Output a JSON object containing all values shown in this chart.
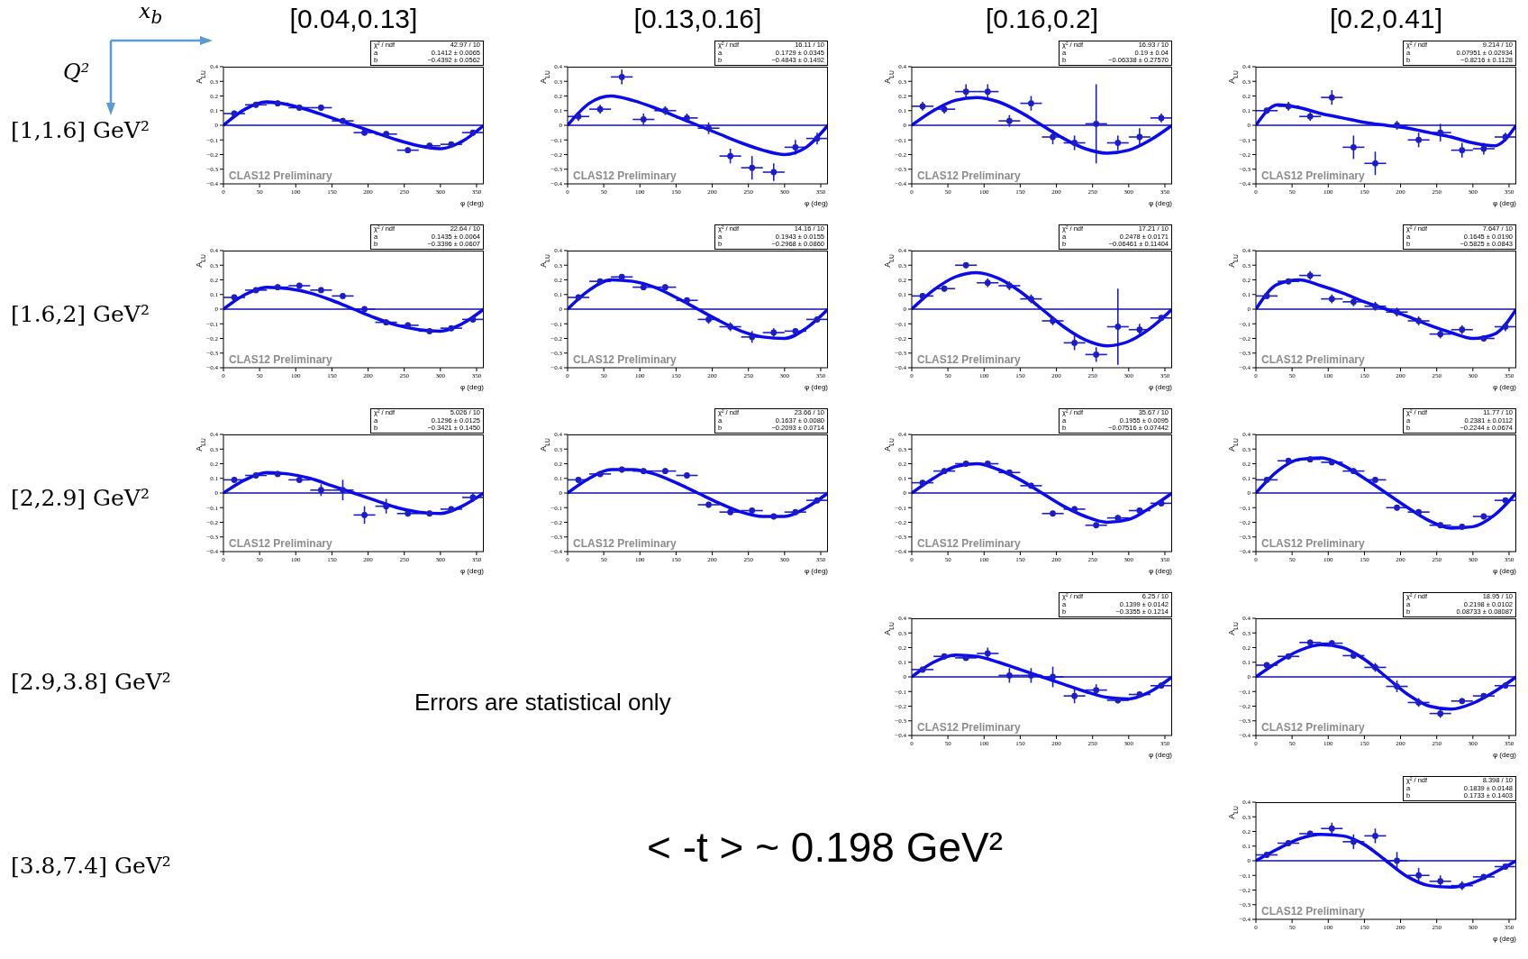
{
  "chart_data": [
    {
      "type": "scatter",
      "xlabel": "φ (deg)",
      "ylabel": "A$_{LU}$",
      "xlim": [
        0,
        360
      ],
      "xticks": [
        0,
        50,
        100,
        150,
        200,
        250,
        300,
        350
      ],
      "ylim": [
        -0.4,
        0.4
      ],
      "yticks": [
        -0.4,
        -0.3,
        -0.2,
        -0.1,
        0,
        0.1,
        0.2,
        0.3,
        0.4
      ],
      "x": [
        15,
        45,
        75,
        105,
        135,
        165,
        195,
        225,
        255,
        285,
        315,
        345
      ],
      "ref_lines": [
        {
          "axis": "y",
          "value": 0,
          "color": "#1010a8"
        }
      ],
      "annotations": [
        "χ² / ndf",
        "42.97 / 10",
        "a",
        "0.1412 ± 0.0065",
        "b",
        "−0.4392 ± 0.0562",
        "CLAS12 Preliminary"
      ],
      "series": [
        {
          "type": "scatter",
          "color": "#1c1cc8",
          "values": [
            0.08,
            0.14,
            0.15,
            0.12,
            0.12,
            0.03,
            -0.05,
            -0.06,
            -0.17,
            -0.14,
            -0.13,
            -0.05
          ],
          "errors": [
            0.02,
            0.02,
            0.02,
            0.02,
            0.02,
            0.02,
            0.02,
            0.02,
            0.02,
            0.02,
            0.02,
            0.02
          ],
          "xerrors": [
            15,
            15,
            15,
            15,
            15,
            15,
            15,
            15,
            15,
            15,
            15,
            15
          ]
        },
        {
          "type": "line",
          "color": "#0a0af0",
          "x": [
            0,
            30,
            60,
            90,
            120,
            150,
            180,
            210,
            240,
            270,
            300,
            330,
            360
          ],
          "values": [
            0,
            0.11,
            0.16,
            0.14,
            0.1,
            0.05,
            0,
            -0.05,
            -0.1,
            -0.14,
            -0.16,
            -0.11,
            0
          ]
        }
      ]
    },
    {
      "type": "scatter",
      "xlabel": "φ (deg)",
      "ylabel": "A$_{LU}$",
      "xlim": [
        0,
        360
      ],
      "xticks": [
        0,
        50,
        100,
        150,
        200,
        250,
        300,
        350
      ],
      "ylim": [
        -0.4,
        0.4
      ],
      "yticks": [
        -0.4,
        -0.3,
        -0.2,
        -0.1,
        0,
        0.1,
        0.2,
        0.3,
        0.4
      ],
      "x": [
        15,
        45,
        75,
        105,
        135,
        165,
        195,
        225,
        255,
        285,
        315,
        345
      ],
      "ref_lines": [
        {
          "axis": "y",
          "value": 0,
          "color": "#1010a8"
        }
      ],
      "annotations": [
        "χ² / ndf",
        "16.11 / 10",
        "a",
        "0.1729 ± 0.0345",
        "b",
        "−0.4843 ± 0.1492",
        "CLAS12 Preliminary"
      ],
      "series": [
        {
          "type": "scatter",
          "color": "#1c1cc8",
          "values": [
            0.06,
            0.11,
            0.33,
            0.04,
            0.1,
            0.05,
            -0.02,
            -0.21,
            -0.29,
            -0.32,
            -0.15,
            -0.09
          ],
          "errors": [
            0.03,
            0.03,
            0.05,
            0.04,
            0.03,
            0.03,
            0.04,
            0.05,
            0.08,
            0.06,
            0.05,
            0.04
          ],
          "xerrors": [
            15,
            15,
            15,
            15,
            15,
            15,
            15,
            15,
            15,
            15,
            15,
            15
          ]
        },
        {
          "type": "line",
          "color": "#0a0af0",
          "x": [
            0,
            30,
            60,
            90,
            120,
            150,
            180,
            210,
            240,
            270,
            300,
            330,
            360
          ],
          "values": [
            0,
            0.15,
            0.2,
            0.17,
            0.12,
            0.06,
            0,
            -0.06,
            -0.12,
            -0.17,
            -0.2,
            -0.15,
            0
          ]
        }
      ]
    },
    {
      "type": "scatter",
      "xlabel": "φ (deg)",
      "ylabel": "A$_{LU}$",
      "xlim": [
        0,
        360
      ],
      "xticks": [
        0,
        50,
        100,
        150,
        200,
        250,
        300,
        350
      ],
      "ylim": [
        -0.4,
        0.4
      ],
      "yticks": [
        -0.4,
        -0.3,
        -0.2,
        -0.1,
        0,
        0.1,
        0.2,
        0.3,
        0.4
      ],
      "x": [
        15,
        45,
        75,
        105,
        135,
        165,
        195,
        225,
        255,
        285,
        315,
        345
      ],
      "ref_lines": [
        {
          "axis": "y",
          "value": 0,
          "color": "#1010a8"
        }
      ],
      "annotations": [
        "χ² / ndf",
        "16.93 / 10",
        "a",
        "0.19 ± 0.04",
        "b",
        "−0.06338 ± 0.27570",
        "CLAS12 Preliminary"
      ],
      "series": [
        {
          "type": "scatter",
          "color": "#1c1cc8",
          "values": [
            0.13,
            0.11,
            0.23,
            0.23,
            0.03,
            0.15,
            -0.08,
            -0.12,
            0.01,
            -0.12,
            -0.08,
            0.05
          ],
          "errors": [
            0.03,
            0.03,
            0.05,
            0.05,
            0.04,
            0.05,
            0.05,
            0.05,
            0.27,
            0.05,
            0.06,
            0.03
          ],
          "xerrors": [
            15,
            15,
            15,
            15,
            15,
            15,
            15,
            15,
            15,
            15,
            15,
            15
          ]
        },
        {
          "type": "line",
          "color": "#0a0af0",
          "x": [
            0,
            30,
            60,
            90,
            120,
            150,
            180,
            210,
            240,
            270,
            300,
            330,
            360
          ],
          "values": [
            0,
            0.1,
            0.17,
            0.19,
            0.16,
            0.09,
            0,
            -0.09,
            -0.16,
            -0.19,
            -0.17,
            -0.1,
            0
          ]
        }
      ]
    },
    {
      "type": "scatter",
      "xlabel": "φ (deg)",
      "ylabel": "A$_{LU}$",
      "xlim": [
        0,
        360
      ],
      "xticks": [
        0,
        50,
        100,
        150,
        200,
        250,
        300,
        350
      ],
      "ylim": [
        -0.4,
        0.4
      ],
      "yticks": [
        -0.4,
        -0.3,
        -0.2,
        -0.1,
        0,
        0.1,
        0.2,
        0.3,
        0.4
      ],
      "x": [
        15,
        45,
        75,
        105,
        135,
        165,
        195,
        225,
        255,
        285,
        315,
        345
      ],
      "ref_lines": [
        {
          "axis": "y",
          "value": 0,
          "color": "#1010a8"
        }
      ],
      "annotations": [
        "χ² / ndf",
        "9.214 / 10",
        "a",
        "0.07951 ± 0.02934",
        "b",
        "−0.8216 ± 0.1128",
        "CLAS12 Preliminary"
      ],
      "series": [
        {
          "type": "scatter",
          "color": "#1c1cc8",
          "values": [
            0.1,
            0.13,
            0.06,
            0.19,
            -0.15,
            -0.26,
            0,
            -0.1,
            -0.05,
            -0.17,
            -0.16,
            -0.08
          ],
          "errors": [
            0.02,
            0.03,
            0.03,
            0.05,
            0.08,
            0.08,
            0.03,
            0.05,
            0.06,
            0.05,
            0.04,
            0.03
          ],
          "xerrors": [
            15,
            15,
            15,
            15,
            15,
            15,
            15,
            15,
            15,
            15,
            15,
            15
          ]
        },
        {
          "type": "line",
          "color": "#0a0af0",
          "x": [
            0,
            30,
            60,
            90,
            120,
            150,
            180,
            210,
            240,
            270,
            300,
            330,
            360
          ],
          "values": [
            0,
            0.14,
            0.12,
            0.08,
            0.05,
            0.02,
            0,
            -0.02,
            -0.05,
            -0.08,
            -0.12,
            -0.14,
            0
          ]
        }
      ]
    },
    {
      "type": "scatter",
      "xlabel": "φ (deg)",
      "ylabel": "A$_{LU}$",
      "xlim": [
        0,
        360
      ],
      "xticks": [
        0,
        50,
        100,
        150,
        200,
        250,
        300,
        350
      ],
      "ylim": [
        -0.4,
        0.4
      ],
      "yticks": [
        -0.4,
        -0.3,
        -0.2,
        -0.1,
        0,
        0.1,
        0.2,
        0.3,
        0.4
      ],
      "x": [
        15,
        45,
        75,
        105,
        135,
        165,
        195,
        225,
        255,
        285,
        315,
        345
      ],
      "ref_lines": [
        {
          "axis": "y",
          "value": 0,
          "color": "#1010a8"
        }
      ],
      "annotations": [
        "χ² / ndf",
        "22.64 / 10",
        "a",
        "0.1435 ± 0.0064",
        "b",
        "−0.3396 ± 0.0607",
        "CLAS12 Preliminary"
      ],
      "series": [
        {
          "type": "scatter",
          "color": "#1c1cc8",
          "values": [
            0.08,
            0.13,
            0.15,
            0.16,
            0.13,
            0.09,
            0,
            -0.09,
            -0.11,
            -0.15,
            -0.13,
            -0.07
          ],
          "errors": [
            0.02,
            0.02,
            0.02,
            0.02,
            0.02,
            0.02,
            0.02,
            0.02,
            0.02,
            0.02,
            0.02,
            0.02
          ],
          "xerrors": [
            15,
            15,
            15,
            15,
            15,
            15,
            15,
            15,
            15,
            15,
            15,
            15
          ]
        },
        {
          "type": "line",
          "color": "#0a0af0",
          "x": [
            0,
            30,
            60,
            90,
            120,
            150,
            180,
            210,
            240,
            270,
            300,
            330,
            360
          ],
          "values": [
            0,
            0.1,
            0.15,
            0.14,
            0.11,
            0.06,
            0,
            -0.06,
            -0.11,
            -0.14,
            -0.15,
            -0.1,
            0
          ]
        }
      ]
    },
    {
      "type": "scatter",
      "xlabel": "φ (deg)",
      "ylabel": "A$_{LU}$",
      "xlim": [
        0,
        360
      ],
      "xticks": [
        0,
        50,
        100,
        150,
        200,
        250,
        300,
        350
      ],
      "ylim": [
        -0.4,
        0.4
      ],
      "yticks": [
        -0.4,
        -0.3,
        -0.2,
        -0.1,
        0,
        0.1,
        0.2,
        0.3,
        0.4
      ],
      "x": [
        15,
        45,
        75,
        105,
        135,
        165,
        195,
        225,
        255,
        285,
        315,
        345
      ],
      "ref_lines": [
        {
          "axis": "y",
          "value": 0,
          "color": "#1010a8"
        }
      ],
      "annotations": [
        "χ² / ndf",
        "14.16 / 10",
        "a",
        "0.1943 ± 0.0155",
        "b",
        "−0.2968 ± 0.0860",
        "CLAS12 Preliminary"
      ],
      "series": [
        {
          "type": "scatter",
          "color": "#1c1cc8",
          "values": [
            0.08,
            0.19,
            0.22,
            0.15,
            0.15,
            0.06,
            -0.07,
            -0.12,
            -0.19,
            -0.16,
            -0.15,
            -0.07
          ],
          "errors": [
            0.02,
            0.02,
            0.02,
            0.02,
            0.02,
            0.02,
            0.03,
            0.03,
            0.04,
            0.03,
            0.02,
            0.02
          ],
          "xerrors": [
            15,
            15,
            15,
            15,
            15,
            15,
            15,
            15,
            15,
            15,
            15,
            15
          ]
        },
        {
          "type": "line",
          "color": "#0a0af0",
          "x": [
            0,
            30,
            60,
            90,
            120,
            150,
            180,
            210,
            240,
            270,
            300,
            330,
            360
          ],
          "values": [
            0,
            0.13,
            0.2,
            0.19,
            0.15,
            0.08,
            0,
            -0.08,
            -0.15,
            -0.19,
            -0.2,
            -0.13,
            0
          ]
        }
      ]
    },
    {
      "type": "scatter",
      "xlabel": "φ (deg)",
      "ylabel": "A$_{LU}$",
      "xlim": [
        0,
        360
      ],
      "xticks": [
        0,
        50,
        100,
        150,
        200,
        250,
        300,
        350
      ],
      "ylim": [
        -0.4,
        0.4
      ],
      "yticks": [
        -0.4,
        -0.3,
        -0.2,
        -0.1,
        0,
        0.1,
        0.2,
        0.3,
        0.4
      ],
      "x": [
        15,
        45,
        75,
        105,
        135,
        165,
        195,
        225,
        255,
        285,
        315,
        345
      ],
      "ref_lines": [
        {
          "axis": "y",
          "value": 0,
          "color": "#1010a8"
        }
      ],
      "annotations": [
        "χ² / ndf",
        "17.21 / 10",
        "a",
        "0.2478 ± 0.0171",
        "b",
        "−0.06461 ± 0.11404",
        "CLAS12 Preliminary"
      ],
      "series": [
        {
          "type": "scatter",
          "color": "#1c1cc8",
          "values": [
            0.09,
            0.14,
            0.3,
            0.18,
            0.16,
            0.07,
            -0.08,
            -0.23,
            -0.31,
            -0.12,
            -0.14,
            -0.06
          ],
          "errors": [
            0.02,
            0.02,
            0.02,
            0.03,
            0.03,
            0.03,
            0.03,
            0.05,
            0.05,
            0.26,
            0.04,
            0.02
          ],
          "xerrors": [
            15,
            15,
            15,
            15,
            15,
            15,
            15,
            15,
            15,
            15,
            15,
            15
          ]
        },
        {
          "type": "line",
          "color": "#0a0af0",
          "x": [
            0,
            30,
            60,
            90,
            120,
            150,
            180,
            210,
            240,
            270,
            300,
            330,
            360
          ],
          "values": [
            0,
            0.13,
            0.22,
            0.25,
            0.21,
            0.12,
            0,
            -0.12,
            -0.21,
            -0.25,
            -0.22,
            -0.13,
            0
          ]
        }
      ]
    },
    {
      "type": "scatter",
      "xlabel": "φ (deg)",
      "ylabel": "A$_{LU}$",
      "xlim": [
        0,
        360
      ],
      "xticks": [
        0,
        50,
        100,
        150,
        200,
        250,
        300,
        350
      ],
      "ylim": [
        -0.4,
        0.4
      ],
      "yticks": [
        -0.4,
        -0.3,
        -0.2,
        -0.1,
        0,
        0.1,
        0.2,
        0.3,
        0.4
      ],
      "x": [
        15,
        45,
        75,
        105,
        135,
        165,
        195,
        225,
        255,
        285,
        315,
        345
      ],
      "ref_lines": [
        {
          "axis": "y",
          "value": 0,
          "color": "#1010a8"
        }
      ],
      "annotations": [
        "χ² / ndf",
        "7.647 / 10",
        "a",
        "0.1645 ± 0.0190",
        "b",
        "−0.5825 ± 0.0843",
        "CLAS12 Preliminary"
      ],
      "series": [
        {
          "type": "scatter",
          "color": "#1c1cc8",
          "values": [
            0.09,
            0.19,
            0.23,
            0.07,
            0.05,
            0.02,
            -0.02,
            -0.08,
            -0.17,
            -0.14,
            -0.2,
            -0.12
          ],
          "errors": [
            0.02,
            0.02,
            0.03,
            0.03,
            0.03,
            0.03,
            0.03,
            0.03,
            0.03,
            0.03,
            0.02,
            0.03
          ],
          "xerrors": [
            15,
            15,
            15,
            15,
            15,
            15,
            15,
            15,
            15,
            15,
            15,
            15
          ]
        },
        {
          "type": "line",
          "color": "#0a0af0",
          "x": [
            0,
            30,
            60,
            90,
            120,
            150,
            180,
            210,
            240,
            270,
            300,
            330,
            360
          ],
          "values": [
            0,
            0.17,
            0.2,
            0.16,
            0.11,
            0.05,
            0,
            -0.05,
            -0.11,
            -0.16,
            -0.2,
            -0.17,
            0
          ]
        }
      ]
    },
    {
      "type": "scatter",
      "xlabel": "φ (deg)",
      "ylabel": "A$_{LU}$",
      "xlim": [
        0,
        360
      ],
      "xticks": [
        0,
        50,
        100,
        150,
        200,
        250,
        300,
        350
      ],
      "ylim": [
        -0.4,
        0.4
      ],
      "yticks": [
        -0.4,
        -0.3,
        -0.2,
        -0.1,
        0,
        0.1,
        0.2,
        0.3,
        0.4
      ],
      "x": [
        15,
        45,
        75,
        105,
        135,
        165,
        195,
        225,
        255,
        285,
        315,
        345
      ],
      "ref_lines": [
        {
          "axis": "y",
          "value": 0,
          "color": "#1010a8"
        }
      ],
      "annotations": [
        "χ² / ndf",
        "5.026 / 10",
        "a",
        "0.1296 ± 0.0125",
        "b",
        "−0.3421 ± 0.1450",
        "CLAS12 Preliminary"
      ],
      "series": [
        {
          "type": "scatter",
          "color": "#1c1cc8",
          "values": [
            0.09,
            0.12,
            0.13,
            0.09,
            0.02,
            0.02,
            -0.15,
            -0.09,
            -0.14,
            -0.14,
            -0.11,
            -0.03
          ],
          "errors": [
            0.02,
            0.02,
            0.02,
            0.02,
            0.04,
            0.07,
            0.06,
            0.05,
            0.02,
            0.02,
            0.02,
            0.03
          ],
          "xerrors": [
            15,
            15,
            15,
            15,
            15,
            15,
            15,
            15,
            15,
            15,
            15,
            15
          ]
        },
        {
          "type": "line",
          "color": "#0a0af0",
          "x": [
            0,
            30,
            60,
            90,
            120,
            150,
            180,
            210,
            240,
            270,
            300,
            330,
            360
          ],
          "values": [
            0,
            0.09,
            0.14,
            0.13,
            0.1,
            0.05,
            0,
            -0.05,
            -0.1,
            -0.13,
            -0.14,
            -0.09,
            0
          ]
        }
      ]
    },
    {
      "type": "scatter",
      "xlabel": "φ (deg)",
      "ylabel": "A$_{LU}$",
      "xlim": [
        0,
        360
      ],
      "xticks": [
        0,
        50,
        100,
        150,
        200,
        250,
        300,
        350
      ],
      "ylim": [
        -0.4,
        0.4
      ],
      "yticks": [
        -0.4,
        -0.3,
        -0.2,
        -0.1,
        0,
        0.1,
        0.2,
        0.3,
        0.4
      ],
      "x": [
        15,
        45,
        75,
        105,
        135,
        165,
        195,
        225,
        255,
        285,
        315,
        345
      ],
      "ref_lines": [
        {
          "axis": "y",
          "value": 0,
          "color": "#1010a8"
        }
      ],
      "annotations": [
        "χ² / ndf",
        "23.66 / 10",
        "a",
        "0.1637 ± 0.0080",
        "b",
        "−0.2093 ± 0.0714",
        "CLAS12 Preliminary"
      ],
      "series": [
        {
          "type": "scatter",
          "color": "#1c1cc8",
          "values": [
            0.09,
            0.13,
            0.16,
            0.15,
            0.15,
            0.12,
            -0.08,
            -0.13,
            -0.12,
            -0.16,
            -0.13,
            -0.05
          ],
          "errors": [
            0.02,
            0.02,
            0.02,
            0.02,
            0.02,
            0.02,
            0.02,
            0.02,
            0.02,
            0.02,
            0.02,
            0.02
          ],
          "xerrors": [
            15,
            15,
            15,
            15,
            15,
            15,
            15,
            15,
            15,
            15,
            15,
            15
          ]
        },
        {
          "type": "line",
          "color": "#0a0af0",
          "x": [
            0,
            30,
            60,
            90,
            120,
            150,
            180,
            210,
            240,
            270,
            300,
            330,
            360
          ],
          "values": [
            0,
            0.1,
            0.16,
            0.16,
            0.13,
            0.07,
            0,
            -0.07,
            -0.13,
            -0.16,
            -0.16,
            -0.1,
            0
          ]
        }
      ]
    },
    {
      "type": "scatter",
      "xlabel": "φ (deg)",
      "ylabel": "A$_{LU}$",
      "xlim": [
        0,
        360
      ],
      "xticks": [
        0,
        50,
        100,
        150,
        200,
        250,
        300,
        350
      ],
      "ylim": [
        -0.4,
        0.4
      ],
      "yticks": [
        -0.4,
        -0.3,
        -0.2,
        -0.1,
        0,
        0.1,
        0.2,
        0.3,
        0.4
      ],
      "x": [
        15,
        45,
        75,
        105,
        135,
        165,
        195,
        225,
        255,
        285,
        315,
        345
      ],
      "ref_lines": [
        {
          "axis": "y",
          "value": 0,
          "color": "#1010a8"
        }
      ],
      "annotations": [
        "χ² / ndf",
        "35.67 / 10",
        "a",
        "0.1955 ± 0.0095",
        "b",
        "−0.07516 ± 0.07442",
        "CLAS12 Preliminary"
      ],
      "series": [
        {
          "type": "scatter",
          "color": "#1c1cc8",
          "values": [
            0.07,
            0.15,
            0.2,
            0.2,
            0.14,
            0.05,
            -0.14,
            -0.11,
            -0.22,
            -0.17,
            -0.12,
            -0.07
          ],
          "errors": [
            0.02,
            0.02,
            0.02,
            0.02,
            0.02,
            0.02,
            0.02,
            0.02,
            0.02,
            0.02,
            0.02,
            0.02
          ],
          "xerrors": [
            15,
            15,
            15,
            15,
            15,
            15,
            15,
            15,
            15,
            15,
            15,
            15
          ]
        },
        {
          "type": "line",
          "color": "#0a0af0",
          "x": [
            0,
            30,
            60,
            90,
            120,
            150,
            180,
            210,
            240,
            270,
            300,
            330,
            360
          ],
          "values": [
            0,
            0.1,
            0.18,
            0.2,
            0.16,
            0.09,
            0,
            -0.09,
            -0.16,
            -0.2,
            -0.18,
            -0.1,
            0
          ]
        }
      ]
    },
    {
      "type": "scatter",
      "xlabel": "φ (deg)",
      "ylabel": "A$_{LU}$",
      "xlim": [
        0,
        360
      ],
      "xticks": [
        0,
        50,
        100,
        150,
        200,
        250,
        300,
        350
      ],
      "ylim": [
        -0.4,
        0.4
      ],
      "yticks": [
        -0.4,
        -0.3,
        -0.2,
        -0.1,
        0,
        0.1,
        0.2,
        0.3,
        0.4
      ],
      "x": [
        15,
        45,
        75,
        105,
        135,
        165,
        195,
        225,
        255,
        285,
        315,
        345
      ],
      "ref_lines": [
        {
          "axis": "y",
          "value": 0,
          "color": "#1010a8"
        }
      ],
      "annotations": [
        "χ² / ndf",
        "11.77 / 10",
        "a",
        "0.2381 ± 0.0112",
        "b",
        "−0.2244 ± 0.0674",
        "CLAS12 Preliminary"
      ],
      "series": [
        {
          "type": "scatter",
          "color": "#1c1cc8",
          "values": [
            0.09,
            0.22,
            0.23,
            0.21,
            0.15,
            0.09,
            -0.1,
            -0.13,
            -0.22,
            -0.23,
            -0.16,
            -0.05
          ],
          "errors": [
            0.02,
            0.02,
            0.02,
            0.02,
            0.02,
            0.02,
            0.02,
            0.02,
            0.02,
            0.02,
            0.02,
            0.02
          ],
          "xerrors": [
            15,
            15,
            15,
            15,
            15,
            15,
            15,
            15,
            15,
            15,
            15,
            15
          ]
        },
        {
          "type": "line",
          "color": "#0a0af0",
          "x": [
            0,
            30,
            60,
            90,
            120,
            150,
            180,
            210,
            240,
            270,
            300,
            330,
            360
          ],
          "values": [
            0,
            0.15,
            0.23,
            0.24,
            0.19,
            0.1,
            0,
            -0.1,
            -0.19,
            -0.24,
            -0.23,
            -0.15,
            0
          ]
        }
      ]
    },
    {
      "type": "scatter",
      "xlabel": "φ (deg)",
      "ylabel": "A$_{LU}$",
      "xlim": [
        0,
        360
      ],
      "xticks": [
        0,
        50,
        100,
        150,
        200,
        250,
        300,
        350
      ],
      "ylim": [
        -0.4,
        0.4
      ],
      "yticks": [
        -0.4,
        -0.3,
        -0.2,
        -0.1,
        0,
        0.1,
        0.2,
        0.3,
        0.4
      ],
      "x": [
        15,
        45,
        75,
        105,
        135,
        165,
        195,
        225,
        255,
        285,
        315,
        345
      ],
      "ref_lines": [
        {
          "axis": "y",
          "value": 0,
          "color": "#1010a8"
        }
      ],
      "annotations": [
        "χ² / ndf",
        "6.25 / 10",
        "a",
        "0.1399 ± 0.0142",
        "b",
        "−0.3355 ± 0.1214",
        "CLAS12 Preliminary"
      ],
      "series": [
        {
          "type": "scatter",
          "color": "#1c1cc8",
          "values": [
            0.05,
            0.14,
            0.13,
            0.16,
            0.01,
            0.01,
            0,
            -0.13,
            -0.09,
            -0.16,
            -0.12,
            -0.06
          ],
          "errors": [
            0.02,
            0.02,
            0.02,
            0.04,
            0.05,
            0.05,
            0.07,
            0.05,
            0.04,
            0.02,
            0.02,
            0.02
          ],
          "xerrors": [
            15,
            15,
            15,
            15,
            15,
            15,
            15,
            15,
            15,
            15,
            15,
            15
          ]
        },
        {
          "type": "line",
          "color": "#0a0af0",
          "x": [
            0,
            30,
            60,
            90,
            120,
            150,
            180,
            210,
            240,
            270,
            300,
            330,
            360
          ],
          "values": [
            0,
            0.1,
            0.15,
            0.14,
            0.1,
            0.05,
            0,
            -0.05,
            -0.1,
            -0.14,
            -0.15,
            -0.1,
            0
          ]
        }
      ]
    },
    {
      "type": "scatter",
      "xlabel": "φ (deg)",
      "ylabel": "A$_{LU}$",
      "xlim": [
        0,
        360
      ],
      "xticks": [
        0,
        50,
        100,
        150,
        200,
        250,
        300,
        350
      ],
      "ylim": [
        -0.4,
        0.4
      ],
      "yticks": [
        -0.4,
        -0.3,
        -0.2,
        -0.1,
        0,
        0.1,
        0.2,
        0.3,
        0.4
      ],
      "x": [
        15,
        45,
        75,
        105,
        135,
        165,
        195,
        225,
        255,
        285,
        315,
        345
      ],
      "ref_lines": [
        {
          "axis": "y",
          "value": 0,
          "color": "#1010a8"
        }
      ],
      "annotations": [
        "χ² / ndf",
        "18.95 / 10",
        "a",
        "0.2198 ± 0.0102",
        "b",
        "0.08733 ± 0.08087",
        "CLAS12 Preliminary"
      ],
      "series": [
        {
          "type": "scatter",
          "color": "#1c1cc8",
          "values": [
            0.08,
            0.14,
            0.235,
            0.23,
            0.145,
            0.065,
            -0.065,
            -0.175,
            -0.25,
            -0.165,
            -0.13,
            -0.06
          ],
          "errors": [
            0.02,
            0.02,
            0.02,
            0.02,
            0.02,
            0.03,
            0.04,
            0.03,
            0.03,
            0.02,
            0.02,
            0.02
          ],
          "xerrors": [
            15,
            15,
            15,
            15,
            15,
            15,
            15,
            15,
            15,
            15,
            15,
            15
          ]
        },
        {
          "type": "line",
          "color": "#0a0af0",
          "x": [
            0,
            30,
            60,
            90,
            120,
            150,
            180,
            210,
            240,
            270,
            300,
            330,
            360
          ],
          "values": [
            0,
            0.1,
            0.18,
            0.22,
            0.2,
            0.12,
            0,
            -0.12,
            -0.2,
            -0.22,
            -0.18,
            -0.1,
            0
          ]
        }
      ]
    },
    {
      "type": "scatter",
      "xlabel": "φ (deg)",
      "ylabel": "A$_{LU}$",
      "xlim": [
        0,
        360
      ],
      "xticks": [
        0,
        50,
        100,
        150,
        200,
        250,
        300,
        350
      ],
      "ylim": [
        -0.4,
        0.4
      ],
      "yticks": [
        -0.4,
        -0.3,
        -0.2,
        -0.1,
        0,
        0.1,
        0.2,
        0.3,
        0.4
      ],
      "x": [
        15,
        45,
        75,
        105,
        135,
        165,
        195,
        225,
        255,
        285,
        315,
        345
      ],
      "ref_lines": [
        {
          "axis": "y",
          "value": 0,
          "color": "#1010a8"
        }
      ],
      "annotations": [
        "χ² / ndf",
        "8.398 / 10",
        "a",
        "0.1839 ± 0.0148",
        "b",
        "0.1733 ± 0.1403",
        "CLAS12 Preliminary"
      ],
      "series": [
        {
          "type": "scatter",
          "color": "#1c1cc8",
          "values": [
            0.04,
            0.12,
            0.185,
            0.22,
            0.13,
            0.17,
            0,
            -0.1,
            -0.14,
            -0.17,
            -0.11,
            -0.04
          ],
          "errors": [
            0.02,
            0.02,
            0.02,
            0.04,
            0.05,
            0.05,
            0.06,
            0.05,
            0.04,
            0.03,
            0.02,
            0.02
          ],
          "xerrors": [
            15,
            15,
            15,
            15,
            15,
            15,
            15,
            15,
            15,
            15,
            15,
            15
          ]
        },
        {
          "type": "line",
          "color": "#0a0af0",
          "x": [
            0,
            30,
            60,
            90,
            120,
            150,
            180,
            210,
            240,
            270,
            300,
            330,
            360
          ],
          "values": [
            0,
            0.08,
            0.15,
            0.18,
            0.17,
            0.11,
            0,
            -0.11,
            -0.17,
            -0.18,
            -0.15,
            -0.08,
            0
          ]
        }
      ]
    },
    {
      "type": "other",
      "annotations": [
        "[0.04,0.13]",
        "[0.13,0.16]",
        "[0.16,0.2]",
        "[0.2,0.41]",
        "[1,1.6] GeV²",
        "[1.6,2] GeV²",
        "[2,2.9] GeV²",
        "[2.9,3.8] GeV²",
        "[3.8,7.4] GeV²",
        "x$_{b}$",
        "Q²",
        "Errors are statistical only",
        "< -t > ~ 0.198 GeV²"
      ]
    }
  ]
}
